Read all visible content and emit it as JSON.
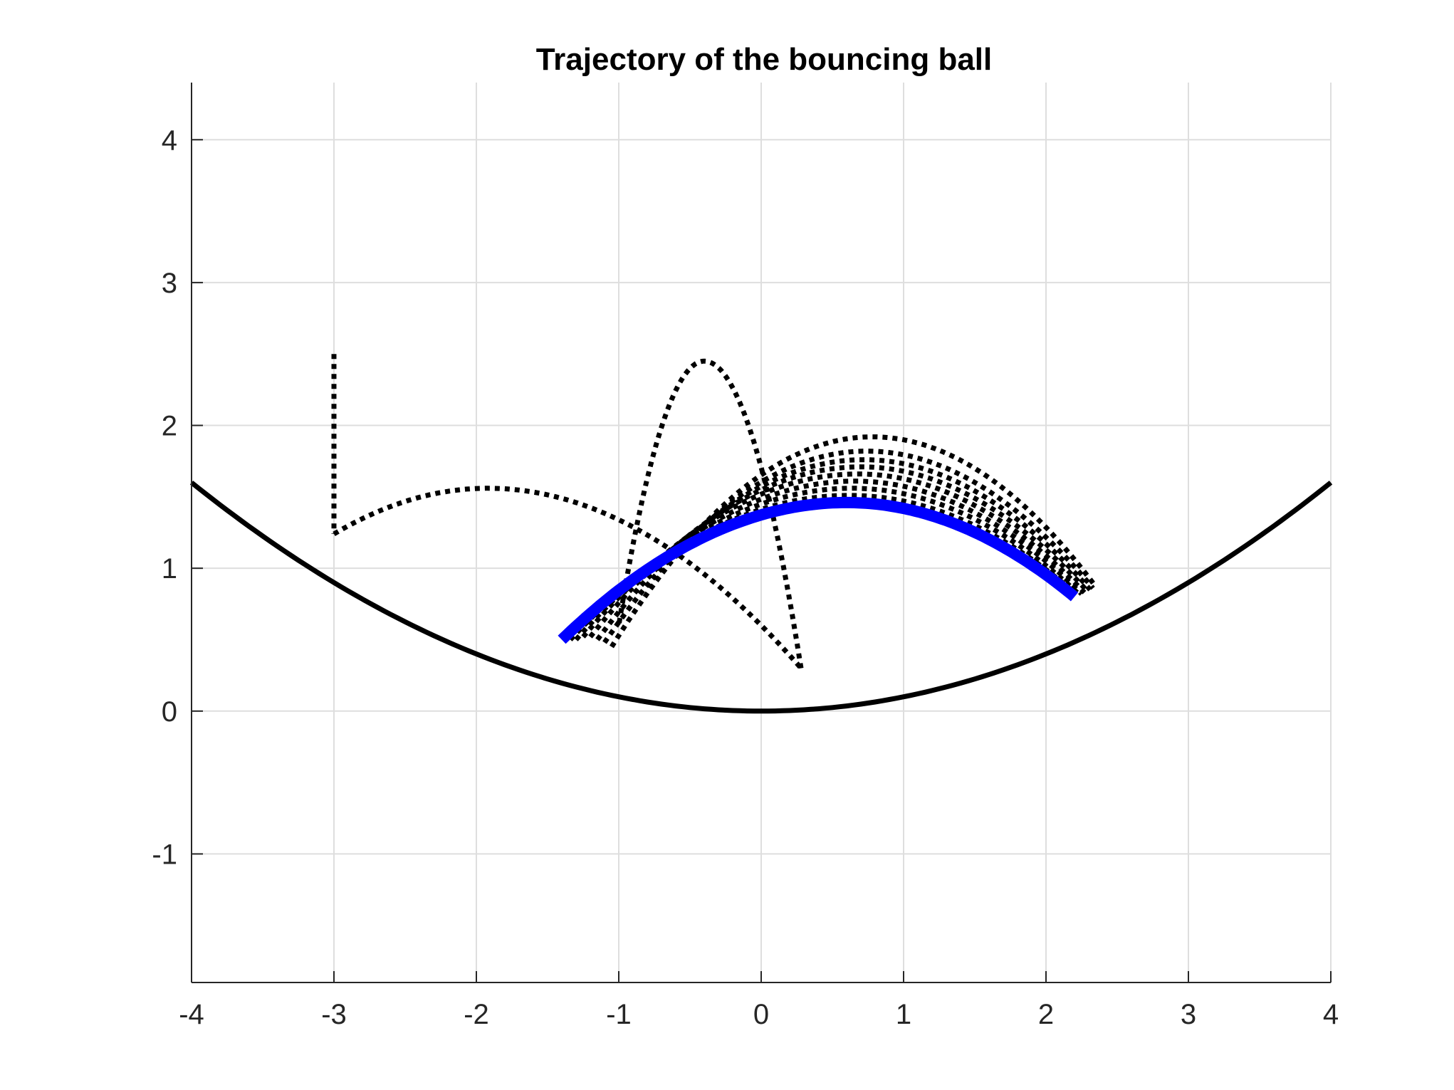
{
  "chart_data": {
    "type": "line",
    "title": "Trajectory of the bouncing ball",
    "xlabel": "",
    "ylabel": "",
    "xlim": [
      -4,
      4
    ],
    "ylim": [
      -1.9,
      4.4
    ],
    "x_ticks": [
      -4,
      -3,
      -2,
      -1,
      0,
      1,
      2,
      3,
      4
    ],
    "y_ticks": [
      -1,
      0,
      1,
      2,
      3,
      4
    ],
    "x_tick_labels": [
      "-4",
      "-3",
      "-2",
      "-1",
      "0",
      "1",
      "2",
      "3",
      "4"
    ],
    "y_tick_labels": [
      "-1",
      "0",
      "1",
      "2",
      "3",
      "4"
    ],
    "grid": true,
    "legend": "none",
    "series": [
      {
        "role": "surface",
        "style": "solid",
        "color": "#000000",
        "function": "y = 0.1 * x^2",
        "x": [
          -4,
          -3.5,
          -3,
          -2.5,
          -2,
          -1.5,
          -1,
          -0.5,
          0,
          0.5,
          1,
          1.5,
          2,
          2.5,
          3,
          3.5,
          4
        ],
        "y": [
          1.6,
          1.225,
          0.9,
          0.625,
          0.4,
          0.225,
          0.1,
          0.025,
          0,
          0.025,
          0.1,
          0.225,
          0.4,
          0.625,
          0.9,
          1.225,
          1.6
        ]
      },
      {
        "role": "bounce-trajectory",
        "style": "dotted",
        "color": "#000000",
        "arcs": [
          {
            "x": [
              -3,
              -3
            ],
            "y": [
              2.5,
              1.24
            ]
          },
          {
            "apex": [
              -1.92,
              1.56
            ],
            "x": [
              -3,
              -1.92,
              0.28
            ],
            "y": [
              1.24,
              1.56,
              0.3
            ]
          },
          {
            "apex": [
              -0.4,
              2.45
            ],
            "x": [
              0.28,
              -0.4,
              -1.0
            ],
            "y": [
              0.3,
              2.45,
              0.6
            ]
          },
          {
            "apex": [
              0.78,
              1.92
            ],
            "x": [
              -1.05,
              0.78,
              2.35
            ],
            "y": [
              0.45,
              1.92,
              0.87
            ]
          },
          {
            "apex": [
              0.74,
              1.82
            ],
            "x": [
              -1.1,
              0.74,
              2.33
            ],
            "y": [
              0.48,
              1.82,
              0.86
            ]
          },
          {
            "apex": [
              0.72,
              1.76
            ],
            "x": [
              -1.15,
              0.72,
              2.31
            ],
            "y": [
              0.5,
              1.76,
              0.85
            ]
          },
          {
            "apex": [
              0.7,
              1.71
            ],
            "x": [
              -1.2,
              0.7,
              2.29
            ],
            "y": [
              0.52,
              1.71,
              0.84
            ]
          },
          {
            "apex": [
              0.68,
              1.66
            ],
            "x": [
              -1.25,
              0.68,
              2.27
            ],
            "y": [
              0.52,
              1.66,
              0.83
            ]
          },
          {
            "apex": [
              0.66,
              1.61
            ],
            "x": [
              -1.3,
              0.66,
              2.25
            ],
            "y": [
              0.5,
              1.61,
              0.82
            ]
          },
          {
            "apex": [
              0.64,
              1.56
            ],
            "x": [
              -1.34,
              0.64,
              2.23
            ],
            "y": [
              0.5,
              1.56,
              0.82
            ]
          },
          {
            "apex": [
              0.62,
              1.51
            ],
            "x": [
              -1.37,
              0.62,
              2.21
            ],
            "y": [
              0.5,
              1.51,
              0.82
            ]
          }
        ]
      },
      {
        "role": "final-trajectory",
        "style": "solid",
        "color": "#0000ff",
        "apex": [
          0.6,
          1.46
        ],
        "x": [
          -1.4,
          0.6,
          2.2
        ],
        "y": [
          0.5,
          1.46,
          0.8
        ]
      }
    ]
  }
}
